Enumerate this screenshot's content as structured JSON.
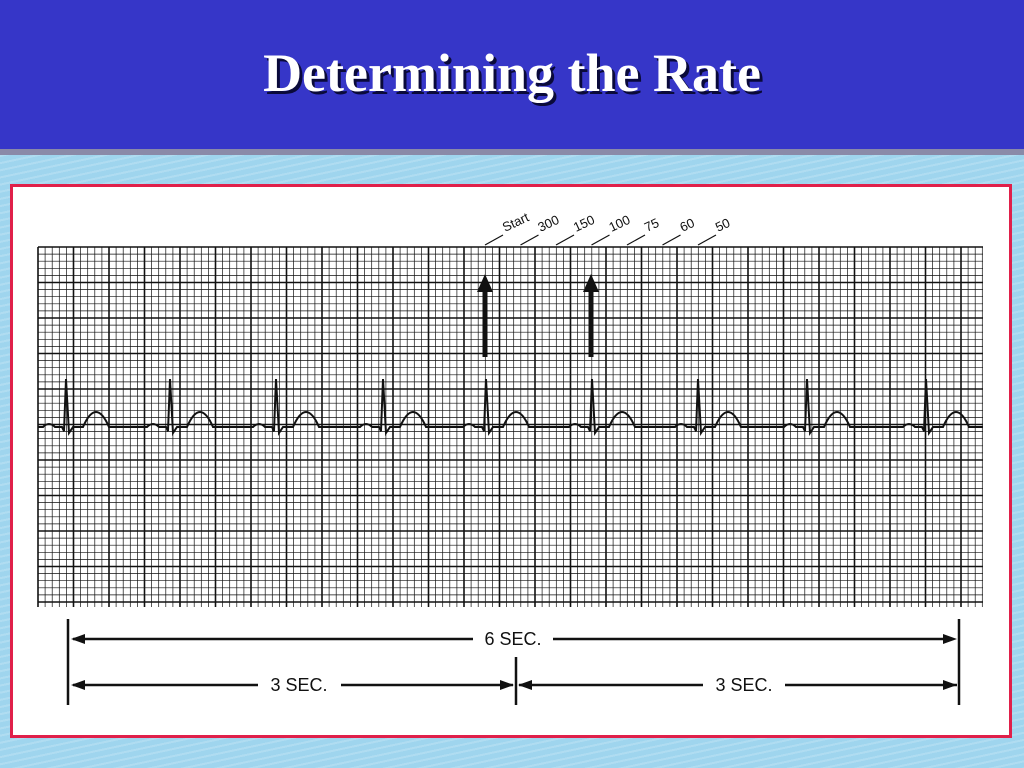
{
  "header": {
    "title": "Determining the Rate"
  },
  "ecg": {
    "scale_labels": [
      "Start",
      "300",
      "150",
      "100",
      "75",
      "60",
      "50"
    ],
    "duration_labels": {
      "total": "6 SEC.",
      "first_half": "3 SEC.",
      "second_half": "3 SEC."
    }
  },
  "colors": {
    "header_bg": "#3636c8",
    "panel_border": "#e0204a",
    "background": "#9fd5ee"
  }
}
